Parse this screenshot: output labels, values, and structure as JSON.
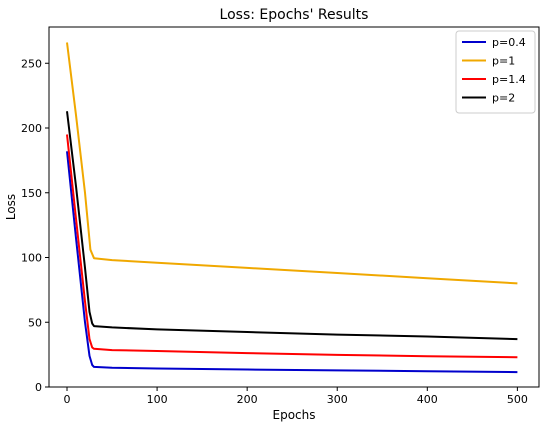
{
  "chart_data": {
    "type": "line",
    "title": "Loss: Epochs' Results",
    "xlabel": "Epochs",
    "ylabel": "Loss",
    "xlim": [
      -20,
      524
    ],
    "ylim": [
      0,
      278
    ],
    "xticks": [
      0,
      100,
      200,
      300,
      400,
      500
    ],
    "yticks": [
      0,
      50,
      100,
      150,
      200,
      250
    ],
    "grid": false,
    "legend": "top-right",
    "series": [
      {
        "name": "p=0.4",
        "color": "#0000cc",
        "x": [
          0,
          10,
          20,
          25,
          28,
          30,
          50,
          100,
          200,
          300,
          400,
          500
        ],
        "y": [
          182,
          115,
          50,
          24,
          17,
          15.5,
          14.8,
          14.3,
          13.5,
          12.8,
          12.2,
          11.5
        ]
      },
      {
        "name": "p=1",
        "color": "#f0a800",
        "x": [
          0,
          10,
          20,
          26,
          30,
          50,
          100,
          200,
          300,
          400,
          500
        ],
        "y": [
          266,
          210,
          150,
          106,
          99.5,
          98,
          96,
          92,
          88,
          84,
          80
        ]
      },
      {
        "name": "p=1.4",
        "color": "#ff0000",
        "x": [
          0,
          10,
          20,
          25,
          28,
          30,
          50,
          100,
          200,
          300,
          400,
          500
        ],
        "y": [
          195,
          130,
          66,
          37,
          30.5,
          29.5,
          28.5,
          27.8,
          26.2,
          24.8,
          23.8,
          23
        ]
      },
      {
        "name": "p=2",
        "color": "#000000",
        "x": [
          0,
          10,
          20,
          25,
          28,
          30,
          50,
          100,
          200,
          300,
          400,
          500
        ],
        "y": [
          213,
          155,
          92,
          58,
          49,
          47,
          46,
          44.5,
          42.5,
          40.5,
          39,
          37
        ]
      }
    ]
  }
}
